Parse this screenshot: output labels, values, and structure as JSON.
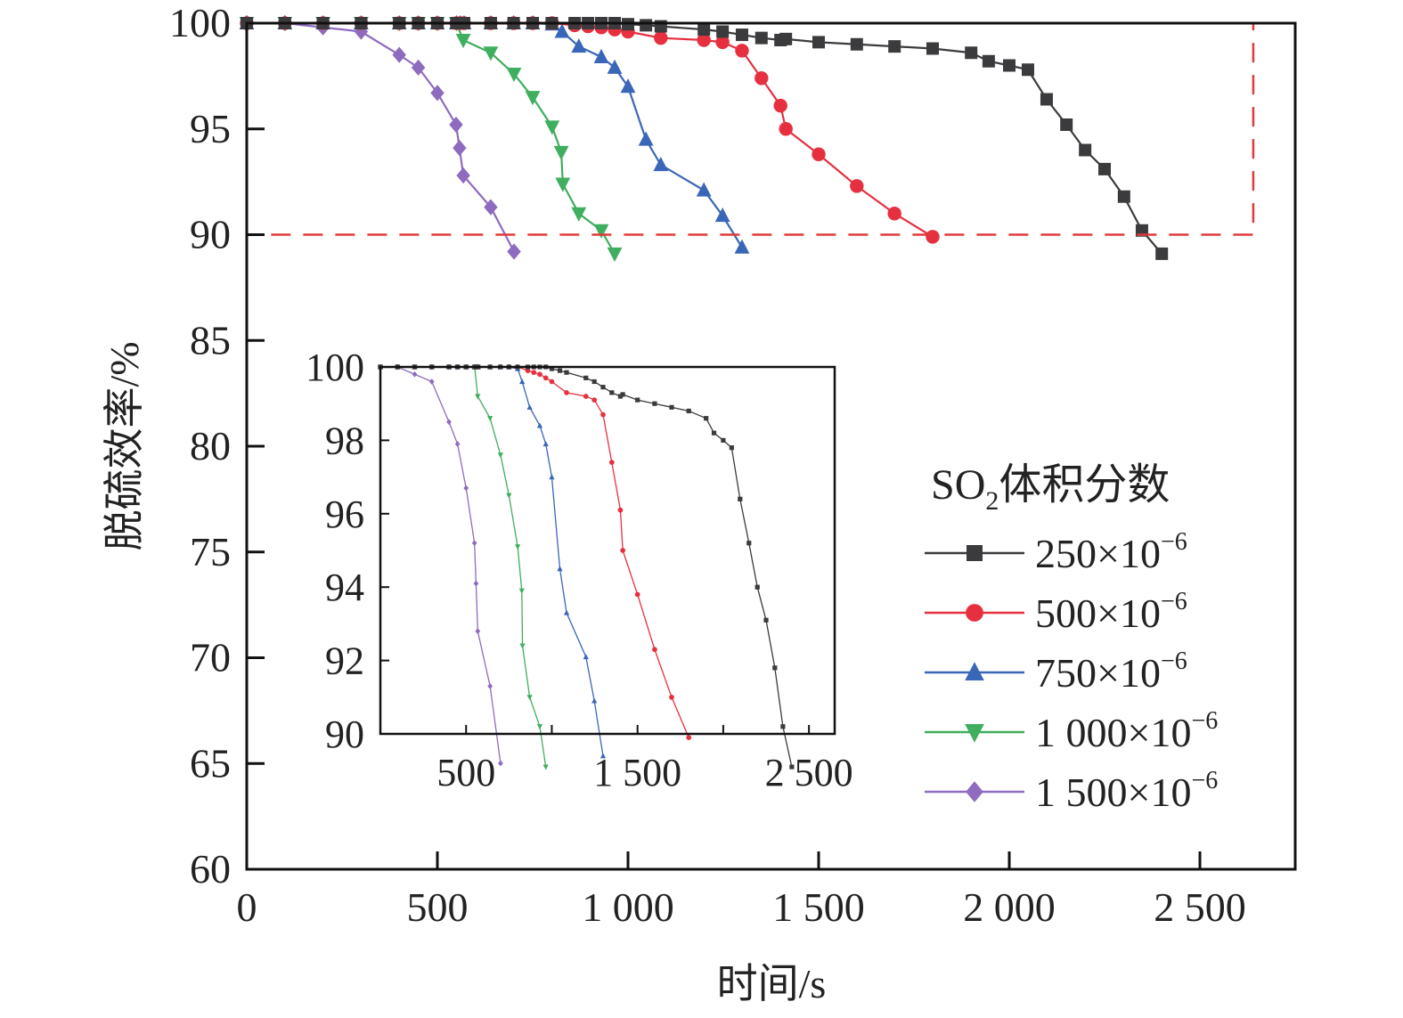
{
  "chart_data": {
    "type": "line",
    "title": "",
    "xlabel": "时间/s",
    "ylabel": "脱硫效率/%",
    "xlim": [
      0,
      2750
    ],
    "ylim": [
      60,
      100
    ],
    "x_ticks": [
      0,
      500,
      1000,
      1500,
      2000,
      2500
    ],
    "x_tick_labels": [
      "0",
      "500",
      "1 000",
      "1 500",
      "2 000",
      "2 500"
    ],
    "y_ticks": [
      60,
      65,
      70,
      75,
      80,
      85,
      90,
      95,
      100
    ],
    "y_tick_labels": [
      "60",
      "65",
      "70",
      "75",
      "80",
      "85",
      "90",
      "95",
      "100"
    ],
    "grid": false,
    "legend": {
      "title_main": "SO",
      "title_sub": "2",
      "title_rest": "体积分数",
      "placement": "right-middle"
    },
    "highlight_box": {
      "x": [
        0,
        2640
      ],
      "y": [
        90,
        100
      ],
      "color": "#e03a3a"
    },
    "series": [
      {
        "name": "250×10⁻⁶",
        "label_base": "250×10",
        "label_exp": "−6",
        "color": "#3b3b3e",
        "marker": "square",
        "x": [
          0,
          100,
          200,
          300,
          400,
          450,
          500,
          550,
          560,
          570,
          640,
          700,
          750,
          800,
          860,
          895,
          930,
          965,
          1000,
          1047,
          1086,
          1199,
          1248,
          1299,
          1350,
          1400,
          1414,
          1500,
          1600,
          1699,
          1799,
          1900,
          1946,
          2000,
          2049,
          2098,
          2150,
          2199,
          2250,
          2301,
          2348,
          2400
        ],
        "y": [
          100,
          100,
          100,
          100,
          100,
          100,
          100,
          100,
          100,
          100,
          100,
          100,
          100,
          100,
          100,
          100,
          100,
          100,
          99.95,
          99.9,
          99.85,
          99.7,
          99.6,
          99.45,
          99.3,
          99.2,
          99.25,
          99.1,
          99.0,
          98.9,
          98.8,
          98.6,
          98.2,
          98.0,
          97.8,
          96.4,
          95.2,
          94.0,
          93.1,
          91.8,
          90.2,
          89.1
        ]
      },
      {
        "name": "500×10⁻⁶",
        "label_base": "500×10",
        "label_exp": "−6",
        "color": "#e6303f",
        "marker": "circle",
        "x": [
          0,
          100,
          200,
          300,
          400,
          450,
          500,
          550,
          560,
          570,
          640,
          700,
          750,
          801,
          860,
          895,
          930,
          965,
          1000,
          1086,
          1199,
          1248,
          1299,
          1350,
          1400,
          1414,
          1500,
          1600,
          1699,
          1799
        ],
        "y": [
          100,
          100,
          100,
          100,
          100,
          100,
          100,
          100,
          100,
          100,
          100,
          100,
          100,
          100,
          99.9,
          99.85,
          99.8,
          99.7,
          99.6,
          99.3,
          99.2,
          99.1,
          98.7,
          97.4,
          96.1,
          95.0,
          93.8,
          92.3,
          91.0,
          89.9
        ]
      },
      {
        "name": "750×10⁻⁶",
        "label_base": "750×10",
        "label_exp": "−6",
        "color": "#3a66b8",
        "marker": "triangle-up",
        "x": [
          0,
          100,
          200,
          300,
          400,
          450,
          500,
          550,
          560,
          570,
          640,
          700,
          750,
          801,
          827,
          871,
          930,
          965,
          1000,
          1047,
          1086,
          1199,
          1248,
          1299
        ],
        "y": [
          100,
          100,
          100,
          100,
          100,
          100,
          100,
          100,
          100,
          100,
          100,
          100,
          100,
          99.95,
          99.6,
          98.9,
          98.4,
          97.9,
          97.0,
          94.5,
          93.3,
          92.1,
          90.9,
          89.4
        ]
      },
      {
        "name": "1 000×10⁻⁶",
        "label_base": "1 000×10",
        "label_exp": "−6",
        "color": "#3fae5e",
        "marker": "triangle-down",
        "x": [
          0,
          100,
          200,
          300,
          400,
          450,
          500,
          550,
          568,
          640,
          701,
          750,
          801,
          825,
          829,
          871,
          930,
          965
        ],
        "y": [
          100,
          100,
          100,
          100,
          100,
          100,
          100,
          100,
          99.2,
          98.6,
          97.6,
          96.5,
          95.1,
          93.9,
          92.4,
          91.0,
          90.2,
          89.1
        ]
      },
      {
        "name": "1 500×10⁻⁶",
        "label_base": "1 500×10",
        "label_exp": "−6",
        "color": "#8e6bbf",
        "marker": "diamond",
        "x": [
          0,
          100,
          200,
          300,
          400,
          450,
          500,
          549,
          558,
          568,
          640,
          701
        ],
        "y": [
          100,
          100,
          99.8,
          99.6,
          98.5,
          97.9,
          96.7,
          95.2,
          94.1,
          92.8,
          91.3,
          89.2
        ]
      }
    ],
    "inset": {
      "xlim": [
        0,
        2650
      ],
      "ylim": [
        90,
        100
      ],
      "x_ticks": [
        500,
        1000,
        1500,
        2000,
        2500
      ],
      "x_tick_labels": [
        "500",
        "",
        "1 500",
        "",
        "2 500"
      ],
      "y_ticks": [
        90,
        92,
        94,
        96,
        98,
        100
      ],
      "y_tick_labels": [
        "90",
        "92",
        "94",
        "96",
        "98",
        "100"
      ]
    }
  }
}
